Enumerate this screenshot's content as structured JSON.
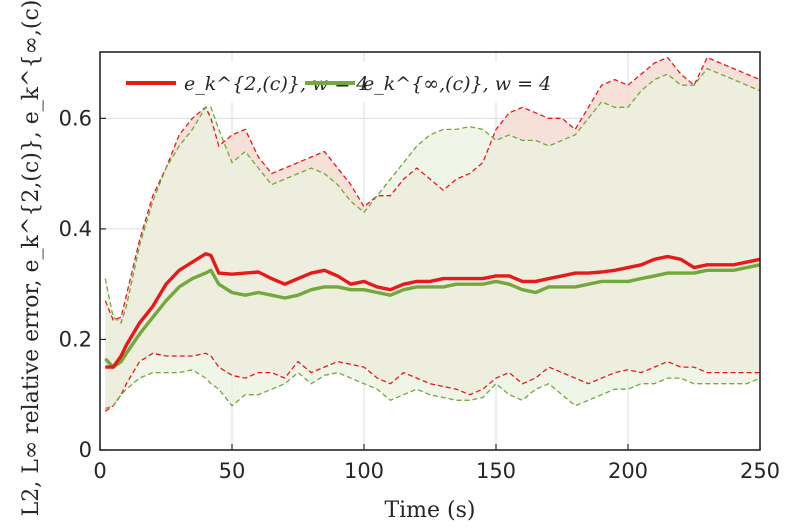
{
  "chart_data": {
    "type": "line",
    "xlabel": "Time (s)",
    "ylabel": "L2, L∞ relative error, e_k^{2,(c)}, e_k^{∞,(c)}",
    "xlim": [
      0,
      250
    ],
    "ylim": [
      0,
      0.72
    ],
    "xticks": [
      0,
      50,
      100,
      150,
      200,
      250
    ],
    "xtick_labels": [
      "0",
      "50",
      "100",
      "150",
      "200",
      "250"
    ],
    "yticks": [
      0,
      0.2,
      0.4,
      0.6
    ],
    "ytick_labels": [
      "0",
      "0.2",
      "0.4",
      "0.6"
    ],
    "grid": true,
    "legend_position": "top-left",
    "series": [
      {
        "name": "e_k^{2,(c)}, w = 4",
        "color": "#e8191a",
        "band_color": "#f4dcd2",
        "x": [
          2,
          5,
          8,
          10,
          15,
          20,
          25,
          30,
          35,
          40,
          42,
          45,
          50,
          55,
          60,
          65,
          70,
          75,
          80,
          85,
          90,
          95,
          100,
          105,
          110,
          115,
          120,
          125,
          130,
          135,
          140,
          145,
          150,
          155,
          160,
          165,
          170,
          175,
          180,
          185,
          190,
          195,
          200,
          205,
          210,
          215,
          220,
          225,
          230,
          235,
          240,
          245,
          250
        ],
        "mean": [
          0.15,
          0.15,
          0.17,
          0.19,
          0.23,
          0.26,
          0.3,
          0.325,
          0.34,
          0.355,
          0.352,
          0.32,
          0.318,
          0.32,
          0.322,
          0.31,
          0.3,
          0.31,
          0.32,
          0.325,
          0.315,
          0.3,
          0.305,
          0.295,
          0.29,
          0.3,
          0.305,
          0.305,
          0.31,
          0.31,
          0.31,
          0.31,
          0.315,
          0.315,
          0.305,
          0.305,
          0.31,
          0.315,
          0.32,
          0.32,
          0.322,
          0.325,
          0.33,
          0.335,
          0.345,
          0.35,
          0.345,
          0.33,
          0.335,
          0.335,
          0.335,
          0.34,
          0.345
        ],
        "upper": [
          0.27,
          0.235,
          0.24,
          0.28,
          0.38,
          0.46,
          0.51,
          0.57,
          0.6,
          0.62,
          0.6,
          0.55,
          0.57,
          0.58,
          0.53,
          0.5,
          0.51,
          0.52,
          0.53,
          0.54,
          0.51,
          0.48,
          0.44,
          0.46,
          0.46,
          0.49,
          0.51,
          0.49,
          0.47,
          0.49,
          0.5,
          0.52,
          0.58,
          0.61,
          0.62,
          0.61,
          0.6,
          0.6,
          0.58,
          0.62,
          0.66,
          0.67,
          0.66,
          0.68,
          0.7,
          0.71,
          0.68,
          0.66,
          0.71,
          0.7,
          0.69,
          0.68,
          0.67
        ],
        "lower": [
          0.07,
          0.08,
          0.1,
          0.12,
          0.16,
          0.175,
          0.17,
          0.17,
          0.17,
          0.175,
          0.17,
          0.15,
          0.135,
          0.13,
          0.14,
          0.14,
          0.13,
          0.16,
          0.14,
          0.15,
          0.16,
          0.155,
          0.15,
          0.13,
          0.12,
          0.14,
          0.13,
          0.12,
          0.115,
          0.11,
          0.1,
          0.11,
          0.13,
          0.14,
          0.12,
          0.13,
          0.15,
          0.14,
          0.13,
          0.12,
          0.13,
          0.14,
          0.145,
          0.14,
          0.15,
          0.16,
          0.15,
          0.15,
          0.14,
          0.14,
          0.14,
          0.14,
          0.14
        ]
      },
      {
        "name": "e_k^{∞,(c)}, w = 4",
        "color": "#72a83c",
        "band_color": "#eaf2df",
        "x": [
          2,
          5,
          8,
          10,
          15,
          20,
          25,
          30,
          35,
          40,
          42,
          45,
          50,
          55,
          60,
          65,
          70,
          75,
          80,
          85,
          90,
          95,
          100,
          105,
          110,
          115,
          120,
          125,
          130,
          135,
          140,
          145,
          150,
          155,
          160,
          165,
          170,
          175,
          180,
          185,
          190,
          195,
          200,
          205,
          210,
          215,
          220,
          225,
          230,
          235,
          240,
          245,
          250
        ],
        "mean": [
          0.165,
          0.15,
          0.16,
          0.175,
          0.21,
          0.24,
          0.27,
          0.295,
          0.31,
          0.32,
          0.325,
          0.3,
          0.285,
          0.28,
          0.285,
          0.28,
          0.275,
          0.28,
          0.29,
          0.295,
          0.295,
          0.29,
          0.29,
          0.285,
          0.28,
          0.29,
          0.295,
          0.295,
          0.295,
          0.3,
          0.3,
          0.3,
          0.305,
          0.3,
          0.29,
          0.285,
          0.295,
          0.295,
          0.295,
          0.3,
          0.305,
          0.305,
          0.305,
          0.31,
          0.315,
          0.32,
          0.32,
          0.32,
          0.325,
          0.325,
          0.325,
          0.33,
          0.335
        ],
        "upper": [
          0.31,
          0.24,
          0.23,
          0.26,
          0.37,
          0.45,
          0.51,
          0.55,
          0.58,
          0.62,
          0.62,
          0.58,
          0.52,
          0.54,
          0.51,
          0.48,
          0.49,
          0.5,
          0.51,
          0.5,
          0.48,
          0.45,
          0.43,
          0.46,
          0.49,
          0.52,
          0.55,
          0.57,
          0.58,
          0.58,
          0.585,
          0.58,
          0.56,
          0.57,
          0.56,
          0.56,
          0.55,
          0.56,
          0.57,
          0.6,
          0.63,
          0.62,
          0.62,
          0.65,
          0.67,
          0.68,
          0.66,
          0.66,
          0.69,
          0.68,
          0.67,
          0.66,
          0.65
        ],
        "lower": [
          0.075,
          0.08,
          0.1,
          0.11,
          0.13,
          0.14,
          0.14,
          0.14,
          0.145,
          0.13,
          0.12,
          0.11,
          0.08,
          0.1,
          0.1,
          0.11,
          0.12,
          0.14,
          0.12,
          0.135,
          0.14,
          0.13,
          0.12,
          0.11,
          0.09,
          0.1,
          0.11,
          0.1,
          0.095,
          0.09,
          0.09,
          0.095,
          0.12,
          0.1,
          0.09,
          0.11,
          0.12,
          0.1,
          0.08,
          0.09,
          0.1,
          0.11,
          0.11,
          0.12,
          0.12,
          0.13,
          0.13,
          0.12,
          0.12,
          0.12,
          0.12,
          0.12,
          0.13
        ]
      }
    ]
  }
}
